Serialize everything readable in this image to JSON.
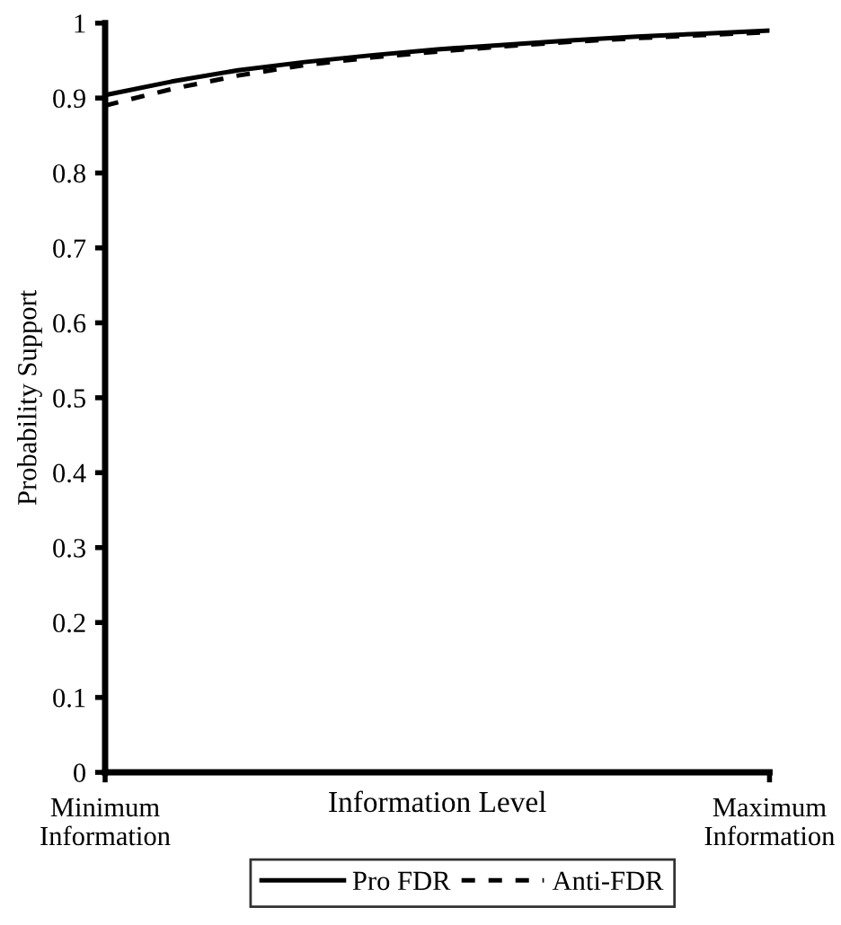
{
  "chart_data": {
    "type": "line",
    "xlabel": "Information Level",
    "ylabel": "Probability Support",
    "categories": [
      "Minimum\nInformation",
      null,
      null,
      null,
      null,
      null,
      null,
      null,
      null,
      null,
      "Maximum\nInformation"
    ],
    "series": [
      {
        "name": "Pro FDR",
        "color": "#000000",
        "line_style": "solid",
        "values": [
          0.904,
          0.922,
          0.937,
          0.948,
          0.957,
          0.965,
          0.971,
          0.977,
          0.982,
          0.986,
          0.99
        ]
      },
      {
        "name": "Anti-FDR",
        "color": "#000000",
        "line_style": "dashed",
        "values": [
          0.89,
          0.912,
          0.93,
          0.944,
          0.954,
          0.962,
          0.969,
          0.975,
          0.98,
          0.984,
          0.988
        ]
      }
    ],
    "ylim": [
      0,
      1
    ],
    "yticks": [
      0,
      0.1,
      0.2,
      0.3,
      0.4,
      0.5,
      0.6,
      0.7,
      0.8,
      0.9,
      1
    ],
    "grid": false,
    "legend": "bottom",
    "marker": "none"
  }
}
